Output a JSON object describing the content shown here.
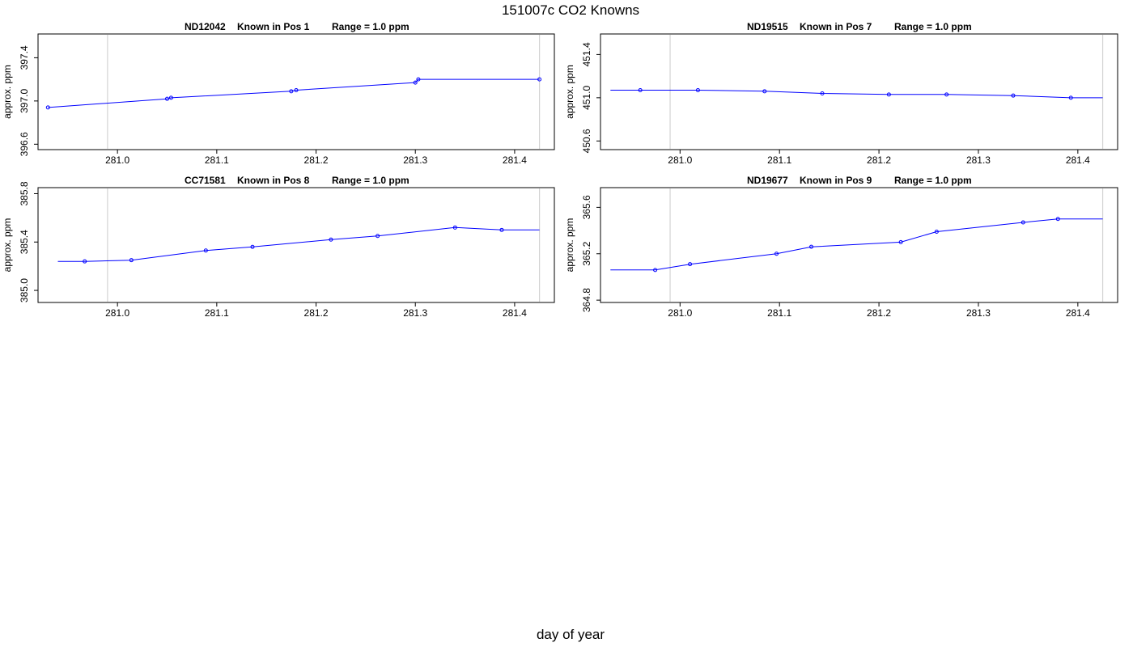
{
  "title": "151007c   CO2 Knowns",
  "xlabel": "day of year",
  "colors": {
    "series": "#0000ff",
    "reference_line": "#d3d3d3",
    "axis": "#000000"
  },
  "chart_data": [
    {
      "type": "line",
      "panel_title": [
        "ND12042",
        "Known in Pos 1",
        "Range = 1.0 ppm"
      ],
      "ylabel": "approx. ppm",
      "xlim": [
        280.92,
        281.44
      ],
      "ylim": [
        396.55,
        397.62
      ],
      "xticks": [
        "281.0",
        "281.1",
        "281.2",
        "281.3",
        "281.4"
      ],
      "xtick_values": [
        281.0,
        281.1,
        281.2,
        281.3,
        281.4
      ],
      "yticks": [
        "396.6",
        "397.0",
        "397.4"
      ],
      "ytick_values": [
        396.6,
        397.0,
        397.4
      ],
      "vlines": [
        280.99,
        281.425
      ],
      "x": [
        280.93,
        281.05,
        281.054,
        281.175,
        281.18,
        281.3,
        281.303,
        281.425
      ],
      "y": [
        396.94,
        397.02,
        397.03,
        397.09,
        397.1,
        397.17,
        397.2,
        397.2
      ],
      "markers": [
        true,
        true,
        true,
        true,
        true,
        true,
        true,
        true
      ]
    },
    {
      "type": "line",
      "panel_title": [
        "ND19515",
        "Known in Pos 7",
        "Range = 1.0 ppm"
      ],
      "ylabel": "approx. ppm",
      "xlim": [
        280.92,
        281.44
      ],
      "ylim": [
        450.52,
        451.59
      ],
      "xticks": [
        "281.0",
        "281.1",
        "281.2",
        "281.3",
        "281.4"
      ],
      "xtick_values": [
        281.0,
        281.1,
        281.2,
        281.3,
        281.4
      ],
      "yticks": [
        "450.6",
        "451.0",
        "451.4"
      ],
      "ytick_values": [
        450.6,
        451.0,
        451.4
      ],
      "vlines": [
        280.99,
        281.425
      ],
      "x": [
        280.93,
        280.96,
        281.018,
        281.085,
        281.143,
        281.21,
        281.268,
        281.335,
        281.393,
        281.425
      ],
      "y": [
        451.07,
        451.07,
        451.07,
        451.06,
        451.04,
        451.03,
        451.03,
        451.02,
        451.0,
        451.0
      ],
      "markers": [
        false,
        true,
        true,
        true,
        true,
        true,
        true,
        true,
        true,
        false
      ]
    },
    {
      "type": "line",
      "panel_title": [
        "CC71581",
        "Known in Pos 8",
        "Range = 1.0 ppm"
      ],
      "ylabel": "approx. ppm",
      "xlim": [
        280.92,
        281.44
      ],
      "ylim": [
        384.9,
        385.85
      ],
      "xticks": [
        "281.0",
        "281.1",
        "281.2",
        "281.3",
        "281.4"
      ],
      "xtick_values": [
        281.0,
        281.1,
        281.2,
        281.3,
        281.4
      ],
      "yticks": [
        "385.0",
        "385.4",
        "385.8"
      ],
      "ytick_values": [
        385.0,
        385.4,
        385.8
      ],
      "vlines": [
        280.99,
        281.425
      ],
      "x": [
        280.94,
        280.967,
        281.014,
        281.089,
        281.136,
        281.215,
        281.262,
        281.34,
        281.387,
        281.425
      ],
      "y": [
        385.24,
        385.24,
        385.25,
        385.33,
        385.36,
        385.42,
        385.45,
        385.52,
        385.5,
        385.5
      ],
      "markers": [
        false,
        true,
        true,
        true,
        true,
        true,
        true,
        true,
        true,
        false
      ]
    },
    {
      "type": "line",
      "panel_title": [
        "ND19677",
        "Known in Pos 9",
        "Range = 1.0 ppm"
      ],
      "ylabel": "approx. ppm",
      "xlim": [
        280.92,
        281.44
      ],
      "ylim": [
        364.78,
        365.77
      ],
      "xticks": [
        "281.0",
        "281.1",
        "281.2",
        "281.3",
        "281.4"
      ],
      "xtick_values": [
        281.0,
        281.1,
        281.2,
        281.3,
        281.4
      ],
      "yticks": [
        "364.8",
        "365.2",
        "365.6"
      ],
      "ytick_values": [
        364.8,
        365.2,
        365.6
      ],
      "vlines": [
        280.99,
        281.425
      ],
      "x": [
        280.93,
        280.975,
        281.01,
        281.097,
        281.132,
        281.222,
        281.258,
        281.345,
        281.38,
        281.425
      ],
      "y": [
        365.06,
        365.06,
        365.11,
        365.2,
        365.26,
        365.3,
        365.39,
        365.47,
        365.5,
        365.5
      ],
      "markers": [
        false,
        true,
        true,
        true,
        true,
        true,
        true,
        true,
        true,
        false
      ]
    }
  ]
}
